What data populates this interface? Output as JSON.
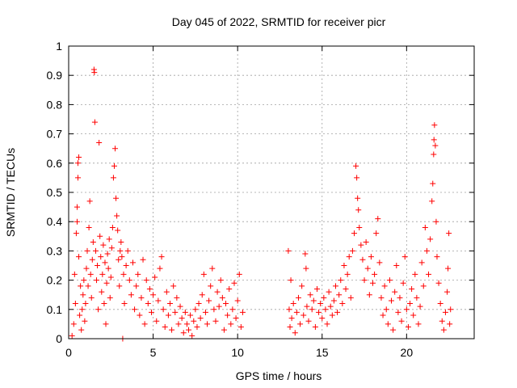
{
  "chart_data": {
    "type": "scatter",
    "title": "Day 045 of 2022, SRMTID for receiver picr",
    "xlabel": "GPS time / hours",
    "ylabel": "SRMTID / TECUs",
    "xlim": [
      0,
      24
    ],
    "ylim": [
      0,
      1
    ],
    "xticks": [
      0,
      5,
      10,
      15,
      20
    ],
    "xtick_labels": [
      "0",
      "5",
      "10",
      "15",
      "20"
    ],
    "yticks": [
      0,
      0.1,
      0.2,
      0.3,
      0.4,
      0.5,
      0.6,
      0.7,
      0.8,
      0.9,
      1
    ],
    "ytick_labels": [
      "0",
      "0.1",
      "0.2",
      "0.3",
      "0.4",
      "0.5",
      "0.6",
      "0.7",
      "0.8",
      "0.9",
      "1"
    ],
    "grid": true,
    "marker": "+",
    "series": [
      {
        "name": "SRMTID picr",
        "color": "#ff0000",
        "points": [
          [
            0.2,
            0.01
          ],
          [
            0.3,
            0.05
          ],
          [
            0.35,
            0.22
          ],
          [
            0.4,
            0.12
          ],
          [
            0.45,
            0.36
          ],
          [
            0.5,
            0.4
          ],
          [
            0.5,
            0.45
          ],
          [
            0.55,
            0.55
          ],
          [
            0.55,
            0.6
          ],
          [
            0.6,
            0.62
          ],
          [
            0.6,
            0.28
          ],
          [
            0.65,
            0.08
          ],
          [
            0.7,
            0.18
          ],
          [
            0.75,
            0.03
          ],
          [
            0.8,
            0.1
          ],
          [
            0.85,
            0.15
          ],
          [
            0.9,
            0.2
          ],
          [
            0.95,
            0.06
          ],
          [
            1.0,
            0.12
          ],
          [
            1.05,
            0.24
          ],
          [
            1.1,
            0.3
          ],
          [
            1.15,
            0.18
          ],
          [
            1.2,
            0.38
          ],
          [
            1.25,
            0.47
          ],
          [
            1.3,
            0.22
          ],
          [
            1.35,
            0.14
          ],
          [
            1.4,
            0.27
          ],
          [
            1.45,
            0.33
          ],
          [
            1.5,
            0.92
          ],
          [
            1.52,
            0.91
          ],
          [
            1.55,
            0.74
          ],
          [
            1.6,
            0.3
          ],
          [
            1.65,
            0.2
          ],
          [
            1.7,
            0.25
          ],
          [
            1.75,
            0.1
          ],
          [
            1.8,
            0.67
          ],
          [
            1.85,
            0.35
          ],
          [
            1.9,
            0.28
          ],
          [
            1.95,
            0.16
          ],
          [
            2.0,
            0.22
          ],
          [
            2.05,
            0.32
          ],
          [
            2.1,
            0.12
          ],
          [
            2.15,
            0.26
          ],
          [
            2.2,
            0.05
          ],
          [
            2.25,
            0.19
          ],
          [
            2.3,
            0.29
          ],
          [
            2.35,
            0.24
          ],
          [
            2.4,
            0.34
          ],
          [
            2.45,
            0.14
          ],
          [
            2.5,
            0.21
          ],
          [
            2.55,
            0.31
          ],
          [
            2.6,
            0.38
          ],
          [
            2.65,
            0.55
          ],
          [
            2.7,
            0.59
          ],
          [
            2.75,
            0.65
          ],
          [
            2.8,
            0.48
          ],
          [
            2.85,
            0.42
          ],
          [
            2.9,
            0.37
          ],
          [
            2.95,
            0.27
          ],
          [
            3.0,
            0.18
          ],
          [
            3.05,
            0.3
          ],
          [
            3.1,
            0.33
          ],
          [
            3.15,
            0.28
          ],
          [
            3.2,
            0.0
          ],
          [
            3.25,
            0.22
          ],
          [
            3.3,
            0.12
          ],
          [
            3.4,
            0.25
          ],
          [
            3.5,
            0.3
          ],
          [
            3.6,
            0.2
          ],
          [
            3.7,
            0.15
          ],
          [
            3.8,
            0.26
          ],
          [
            3.9,
            0.1
          ],
          [
            4.0,
            0.18
          ],
          [
            4.1,
            0.22
          ],
          [
            4.2,
            0.08
          ],
          [
            4.3,
            0.14
          ],
          [
            4.4,
            0.27
          ],
          [
            4.5,
            0.05
          ],
          [
            4.6,
            0.2
          ],
          [
            4.7,
            0.12
          ],
          [
            4.8,
            0.17
          ],
          [
            4.9,
            0.09
          ],
          [
            5.0,
            0.15
          ],
          [
            5.1,
            0.21
          ],
          [
            5.2,
            0.06
          ],
          [
            5.3,
            0.13
          ],
          [
            5.4,
            0.24
          ],
          [
            5.5,
            0.28
          ],
          [
            5.6,
            0.1
          ],
          [
            5.7,
            0.04
          ],
          [
            5.8,
            0.16
          ],
          [
            5.9,
            0.08
          ],
          [
            6.0,
            0.12
          ],
          [
            6.1,
            0.03
          ],
          [
            6.2,
            0.18
          ],
          [
            6.3,
            0.09
          ],
          [
            6.4,
            0.14
          ],
          [
            6.5,
            0.05
          ],
          [
            6.6,
            0.11
          ],
          [
            6.7,
            0.07
          ],
          [
            6.8,
            0.02
          ],
          [
            6.9,
            0.09
          ],
          [
            7.0,
            0.05
          ],
          [
            7.1,
            0.03
          ],
          [
            7.2,
            0.08
          ],
          [
            7.3,
            0.01
          ],
          [
            7.4,
            0.06
          ],
          [
            7.5,
            0.1
          ],
          [
            7.6,
            0.04
          ],
          [
            7.7,
            0.12
          ],
          [
            7.8,
            0.07
          ],
          [
            7.9,
            0.15
          ],
          [
            8.0,
            0.22
          ],
          [
            8.1,
            0.09
          ],
          [
            8.2,
            0.05
          ],
          [
            8.3,
            0.13
          ],
          [
            8.4,
            0.18
          ],
          [
            8.5,
            0.24
          ],
          [
            8.6,
            0.1
          ],
          [
            8.7,
            0.06
          ],
          [
            8.8,
            0.16
          ],
          [
            8.9,
            0.11
          ],
          [
            9.0,
            0.2
          ],
          [
            9.1,
            0.14
          ],
          [
            9.2,
            0.03
          ],
          [
            9.3,
            0.12
          ],
          [
            9.4,
            0.08
          ],
          [
            9.5,
            0.17
          ],
          [
            9.6,
            0.05
          ],
          [
            9.7,
            0.1
          ],
          [
            9.8,
            0.19
          ],
          [
            9.9,
            0.07
          ],
          [
            10.0,
            0.13
          ],
          [
            10.1,
            0.22
          ],
          [
            10.2,
            0.04
          ],
          [
            10.3,
            0.09
          ],
          [
            13.0,
            0.3
          ],
          [
            13.05,
            0.1
          ],
          [
            13.1,
            0.04
          ],
          [
            13.15,
            0.2
          ],
          [
            13.2,
            0.07
          ],
          [
            13.3,
            0.12
          ],
          [
            13.4,
            0.02
          ],
          [
            13.5,
            0.09
          ],
          [
            13.6,
            0.14
          ],
          [
            13.7,
            0.05
          ],
          [
            13.8,
            0.18
          ],
          [
            13.9,
            0.08
          ],
          [
            14.0,
            0.29
          ],
          [
            14.05,
            0.24
          ],
          [
            14.1,
            0.11
          ],
          [
            14.2,
            0.06
          ],
          [
            14.3,
            0.15
          ],
          [
            14.4,
            0.1
          ],
          [
            14.5,
            0.13
          ],
          [
            14.6,
            0.04
          ],
          [
            14.7,
            0.17
          ],
          [
            14.8,
            0.09
          ],
          [
            14.9,
            0.12
          ],
          [
            15.0,
            0.07
          ],
          [
            15.1,
            0.14
          ],
          [
            15.2,
            0.1
          ],
          [
            15.3,
            0.05
          ],
          [
            15.4,
            0.16
          ],
          [
            15.5,
            0.11
          ],
          [
            15.6,
            0.08
          ],
          [
            15.7,
            0.13
          ],
          [
            15.8,
            0.18
          ],
          [
            15.9,
            0.09
          ],
          [
            16.0,
            0.15
          ],
          [
            16.1,
            0.2
          ],
          [
            16.2,
            0.12
          ],
          [
            16.3,
            0.25
          ],
          [
            16.4,
            0.17
          ],
          [
            16.5,
            0.22
          ],
          [
            16.6,
            0.28
          ],
          [
            16.7,
            0.14
          ],
          [
            16.8,
            0.3
          ],
          [
            16.9,
            0.36
          ],
          [
            17.0,
            0.59
          ],
          [
            17.05,
            0.55
          ],
          [
            17.1,
            0.48
          ],
          [
            17.15,
            0.44
          ],
          [
            17.2,
            0.38
          ],
          [
            17.3,
            0.32
          ],
          [
            17.4,
            0.27
          ],
          [
            17.5,
            0.2
          ],
          [
            17.6,
            0.33
          ],
          [
            17.7,
            0.24
          ],
          [
            17.8,
            0.15
          ],
          [
            17.9,
            0.28
          ],
          [
            18.0,
            0.19
          ],
          [
            18.1,
            0.22
          ],
          [
            18.2,
            0.36
          ],
          [
            18.3,
            0.41
          ],
          [
            18.4,
            0.26
          ],
          [
            18.5,
            0.14
          ],
          [
            18.6,
            0.08
          ],
          [
            18.7,
            0.18
          ],
          [
            18.8,
            0.1
          ],
          [
            18.9,
            0.05
          ],
          [
            19.0,
            0.2
          ],
          [
            19.1,
            0.13
          ],
          [
            19.2,
            0.03
          ],
          [
            19.3,
            0.16
          ],
          [
            19.4,
            0.25
          ],
          [
            19.5,
            0.09
          ],
          [
            19.6,
            0.14
          ],
          [
            19.7,
            0.06
          ],
          [
            19.8,
            0.19
          ],
          [
            19.9,
            0.28
          ],
          [
            20.0,
            0.1
          ],
          [
            20.1,
            0.04
          ],
          [
            20.2,
            0.12
          ],
          [
            20.3,
            0.17
          ],
          [
            20.4,
            0.08
          ],
          [
            20.5,
            0.22
          ],
          [
            20.6,
            0.14
          ],
          [
            20.7,
            0.05
          ],
          [
            20.8,
            0.11
          ],
          [
            20.9,
            0.26
          ],
          [
            21.0,
            0.18
          ],
          [
            21.1,
            0.38
          ],
          [
            21.2,
            0.3
          ],
          [
            21.3,
            0.22
          ],
          [
            21.4,
            0.34
          ],
          [
            21.5,
            0.47
          ],
          [
            21.55,
            0.53
          ],
          [
            21.6,
            0.63
          ],
          [
            21.62,
            0.68
          ],
          [
            21.65,
            0.73
          ],
          [
            21.7,
            0.66
          ],
          [
            21.75,
            0.4
          ],
          [
            21.8,
            0.28
          ],
          [
            21.9,
            0.19
          ],
          [
            22.0,
            0.12
          ],
          [
            22.1,
            0.06
          ],
          [
            22.2,
            0.03
          ],
          [
            22.3,
            0.09
          ],
          [
            22.4,
            0.16
          ],
          [
            22.45,
            0.24
          ],
          [
            22.5,
            0.36
          ],
          [
            22.55,
            0.05
          ],
          [
            22.6,
            0.1
          ]
        ]
      }
    ]
  }
}
